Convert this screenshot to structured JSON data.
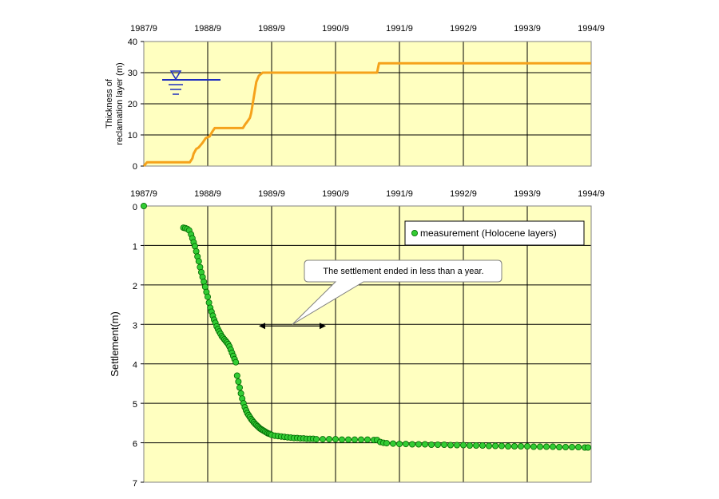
{
  "chart_data": [
    {
      "type": "line",
      "ylabel_lines": [
        "Thickness of",
        "reclamation layer (m)"
      ],
      "x_tick_labels": [
        "1987/9",
        "1988/9",
        "1989/9",
        "1990/9",
        "1991/9",
        "1992/9",
        "1993/9",
        "1994/9"
      ],
      "x_tick_years": [
        0,
        1,
        2,
        3,
        4,
        5,
        6,
        7
      ],
      "xlim_years_since_1987_9": [
        0,
        7
      ],
      "ylim": [
        0,
        40
      ],
      "y_ticks": [
        0,
        10,
        20,
        30,
        40
      ],
      "grid": true,
      "line_color": "#F5A21B",
      "water_symbol_color": "#1F2FBF",
      "series": [
        {
          "x": [
            0.0,
            0.05,
            0.72,
            0.76,
            0.78,
            0.82,
            0.86,
            0.92,
            0.97,
            1.03,
            1.07,
            1.11,
            1.55,
            1.59,
            1.61,
            1.66,
            1.68,
            1.72,
            1.76,
            1.8,
            1.86,
            3.0,
            3.65,
            3.68,
            7.0
          ],
          "y": [
            0.0,
            1.2,
            1.2,
            2.5,
            4.0,
            5.5,
            6.0,
            7.5,
            9.0,
            9.5,
            11.0,
            12.2,
            12.2,
            13.5,
            14.0,
            15.5,
            17.0,
            22.0,
            27.0,
            29.0,
            30.0,
            30.0,
            30.0,
            33.0,
            33.0
          ]
        }
      ]
    },
    {
      "type": "scatter",
      "ylabel": "Settlement(m)",
      "x_tick_labels": [
        "1987/9",
        "1988/9",
        "1989/9",
        "1990/9",
        "1991/9",
        "1992/9",
        "1993/9",
        "1994/9"
      ],
      "x_tick_years": [
        0,
        1,
        2,
        3,
        4,
        5,
        6,
        7
      ],
      "xlim_years_since_1987_9": [
        0,
        7
      ],
      "ylim": [
        0,
        7
      ],
      "y_inverted": true,
      "y_ticks": [
        0,
        1,
        2,
        3,
        4,
        5,
        6,
        7
      ],
      "grid": true,
      "legend": {
        "label": "measurement (Holocene layers)",
        "placement": "top-right"
      },
      "marker_color": "#33CC33",
      "annotation": {
        "text": "The settlement ended  in less than a year.",
        "arrow_from_year": 1.8,
        "arrow_to_year": 2.85,
        "arrow_y": 3.0
      },
      "series": [
        {
          "name": "measurement (Holocene layers)",
          "x": [
            0.0,
            0.62,
            0.65,
            0.68,
            0.71,
            0.74,
            0.76,
            0.78,
            0.8,
            0.82,
            0.84,
            0.86,
            0.88,
            0.9,
            0.92,
            0.94,
            0.96,
            0.98,
            1.0,
            1.02,
            1.04,
            1.06,
            1.08,
            1.1,
            1.12,
            1.14,
            1.16,
            1.18,
            1.2,
            1.22,
            1.24,
            1.26,
            1.28,
            1.3,
            1.32,
            1.34,
            1.36,
            1.38,
            1.4,
            1.42,
            1.44,
            1.46,
            1.48,
            1.5,
            1.52,
            1.54,
            1.56,
            1.58,
            1.6,
            1.62,
            1.64,
            1.66,
            1.68,
            1.7,
            1.72,
            1.74,
            1.76,
            1.78,
            1.8,
            1.82,
            1.84,
            1.86,
            1.88,
            1.9,
            1.92,
            1.94,
            1.96,
            1.98,
            2.0,
            2.05,
            2.1,
            2.15,
            2.2,
            2.25,
            2.3,
            2.35,
            2.4,
            2.45,
            2.5,
            2.55,
            2.6,
            2.65,
            2.7,
            2.8,
            2.9,
            3.0,
            3.1,
            3.2,
            3.3,
            3.4,
            3.5,
            3.6,
            3.65,
            3.7,
            3.75,
            3.8,
            3.9,
            4.0,
            4.1,
            4.2,
            4.3,
            4.4,
            4.5,
            4.6,
            4.7,
            4.8,
            4.9,
            5.0,
            5.1,
            5.2,
            5.3,
            5.4,
            5.5,
            5.6,
            5.7,
            5.8,
            5.9,
            6.0,
            6.1,
            6.2,
            6.3,
            6.4,
            6.5,
            6.6,
            6.7,
            6.8,
            6.9,
            6.95
          ],
          "y": [
            0.0,
            0.55,
            0.56,
            0.58,
            0.62,
            0.72,
            0.82,
            0.92,
            1.02,
            1.15,
            1.28,
            1.4,
            1.55,
            1.68,
            1.8,
            1.92,
            2.05,
            2.18,
            2.3,
            2.45,
            2.58,
            2.68,
            2.78,
            2.88,
            2.96,
            3.05,
            3.12,
            3.18,
            3.24,
            3.3,
            3.34,
            3.38,
            3.42,
            3.46,
            3.5,
            3.56,
            3.64,
            3.72,
            3.8,
            3.88,
            3.96,
            4.3,
            4.45,
            4.6,
            4.75,
            4.88,
            5.0,
            5.1,
            5.18,
            5.25,
            5.3,
            5.35,
            5.4,
            5.44,
            5.48,
            5.52,
            5.55,
            5.58,
            5.61,
            5.64,
            5.66,
            5.68,
            5.7,
            5.72,
            5.74,
            5.76,
            5.77,
            5.78,
            5.8,
            5.82,
            5.83,
            5.84,
            5.85,
            5.86,
            5.87,
            5.88,
            5.88,
            5.89,
            5.89,
            5.9,
            5.9,
            5.9,
            5.91,
            5.91,
            5.91,
            5.91,
            5.92,
            5.92,
            5.92,
            5.92,
            5.92,
            5.93,
            5.93,
            5.98,
            6.0,
            6.01,
            6.02,
            6.03,
            6.03,
            6.04,
            6.04,
            6.04,
            6.05,
            6.05,
            6.05,
            6.06,
            6.06,
            6.06,
            6.07,
            6.07,
            6.07,
            6.08,
            6.08,
            6.08,
            6.09,
            6.09,
            6.09,
            6.09,
            6.1,
            6.1,
            6.1,
            6.1,
            6.11,
            6.11,
            6.11,
            6.11,
            6.12,
            6.12
          ]
        }
      ]
    }
  ]
}
